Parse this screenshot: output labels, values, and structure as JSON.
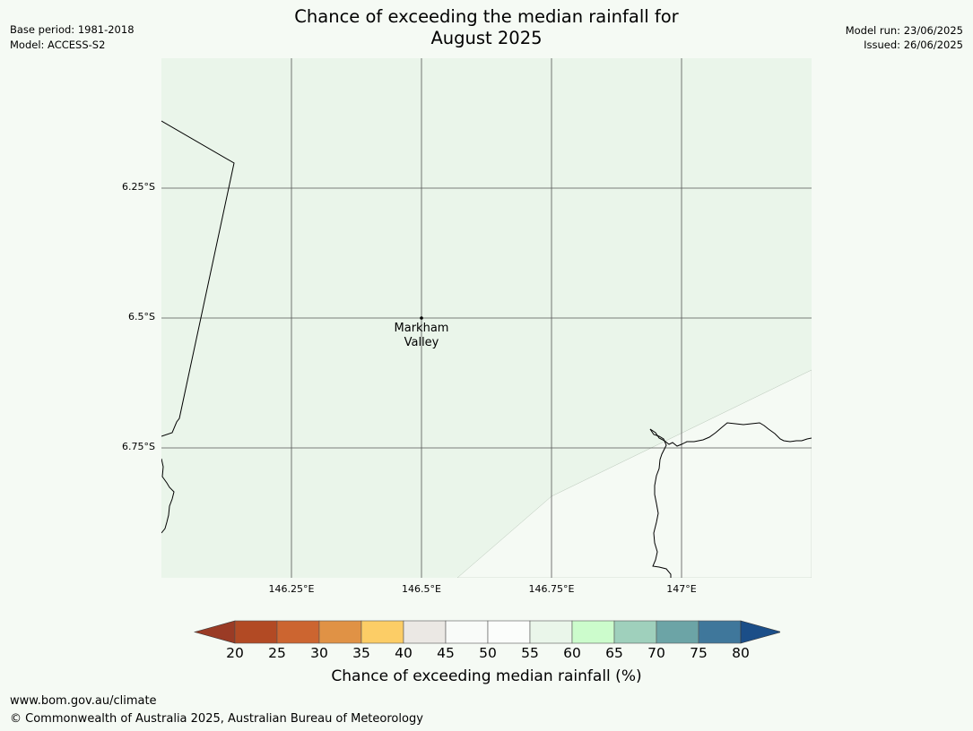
{
  "header": {
    "title_line1": "Chance of exceeding the median rainfall for",
    "title_line2": "August 2025",
    "base_period": "Base period: 1981-2018",
    "model": "Model: ACCESS-S2",
    "model_run": "Model run: 23/06/2025",
    "issued": "Issued: 26/06/2025"
  },
  "map": {
    "lat_labels": [
      "6.25°S",
      "6.5°S",
      "6.75°S"
    ],
    "lon_labels": [
      "146.25°E",
      "146.5°E",
      "146.75°E",
      "147°E"
    ],
    "place": {
      "line1": "Markham",
      "line2": "Valley"
    },
    "colors": {
      "region_50_55": "#eaf5ea",
      "region_55_60": "#f5faf4",
      "gridline": "#555555",
      "coast": "#000000"
    }
  },
  "colorbar": {
    "ticks": [
      "20",
      "25",
      "30",
      "35",
      "40",
      "45",
      "50",
      "55",
      "60",
      "65",
      "70",
      "75",
      "80"
    ],
    "colors": [
      "#9a3b25",
      "#b24a24",
      "#cc6530",
      "#e09245",
      "#fccd66",
      "#ebe8e4",
      "#f9fbf9",
      "#fbfdfb",
      "#eaf6ea",
      "#ccfccc",
      "#9fd0bc",
      "#6ca4a6",
      "#3f779b",
      "#1b4e88"
    ],
    "label": "Chance of exceeding median rainfall (%)"
  },
  "footer": {
    "url": "www.bom.gov.au/climate",
    "copyright": "© Commonwealth of Australia 2025, Australian Bureau of Meteorology"
  }
}
